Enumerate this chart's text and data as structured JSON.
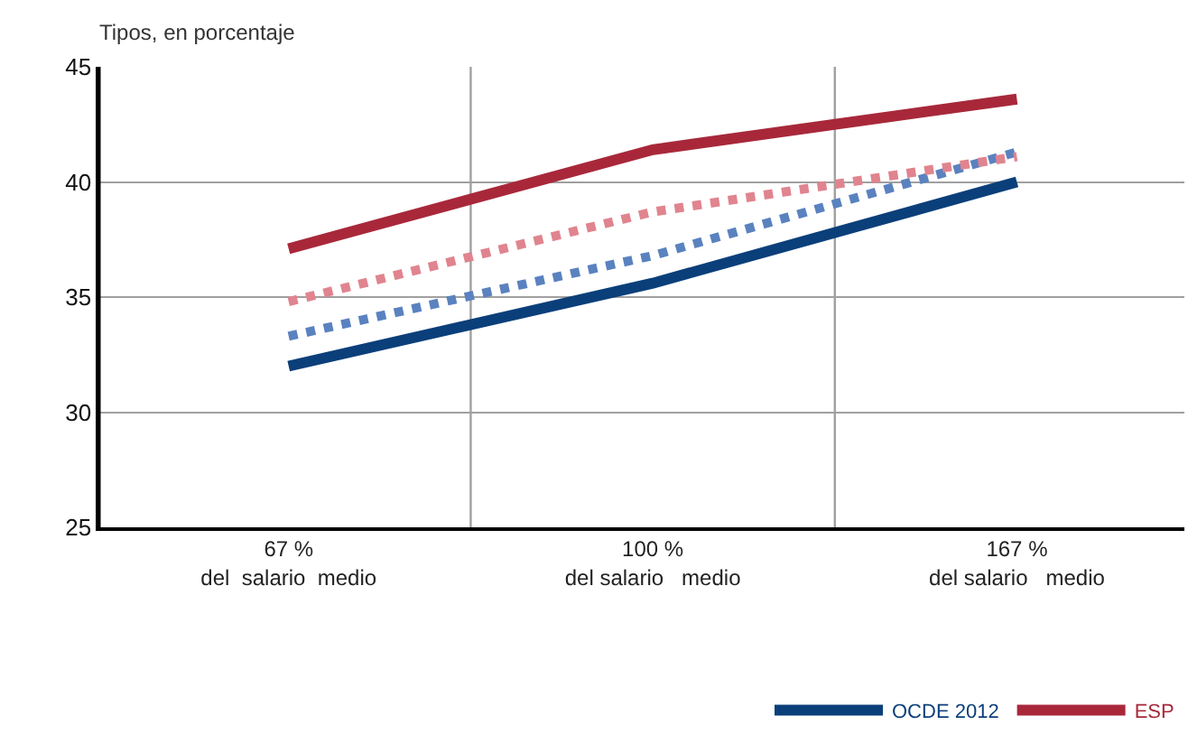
{
  "chart_data": {
    "type": "line",
    "ylabel": "Tipos, en porcentaje",
    "categories": [
      "67 %\ndel  salario  medio",
      "100 %\ndel salario   medio",
      "167 %\ndel salario   medio"
    ],
    "series": [
      {
        "name": "OCDE 2012",
        "color": "#0b3f7a",
        "values": [
          32.0,
          35.6,
          40.0
        ],
        "line_style": "solid"
      },
      {
        "name": "ESP",
        "color": "#a8283a",
        "values": [
          37.1,
          41.4,
          43.6
        ],
        "line_style": "solid"
      },
      {
        "color": "#5a82bf",
        "values": [
          33.3,
          36.8,
          41.3
        ],
        "line_style": "dotted"
      },
      {
        "color": "#e0848f",
        "values": [
          34.8,
          38.7,
          41.1
        ],
        "line_style": "dotted"
      }
    ],
    "ylim": [
      25,
      45
    ],
    "yticks": [
      25,
      30,
      35,
      40,
      45
    ],
    "grid": true,
    "legend": "bottom right",
    "marker": "none"
  }
}
